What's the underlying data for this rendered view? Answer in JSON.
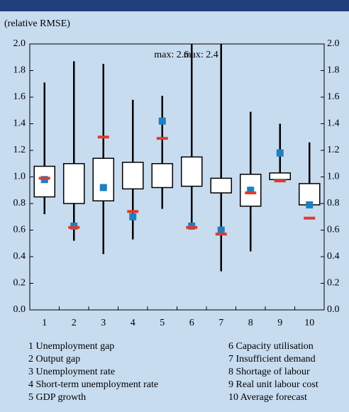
{
  "chart_data": {
    "type": "box",
    "subtitle": "(relative RMSE)",
    "categories": [
      "1",
      "2",
      "3",
      "4",
      "5",
      "6",
      "7",
      "8",
      "9",
      "10"
    ],
    "whisker_high": [
      1.71,
      1.87,
      1.85,
      1.58,
      1.61,
      2.6,
      2.4,
      1.49,
      1.4,
      1.26
    ],
    "box_high": [
      1.08,
      1.1,
      1.14,
      1.11,
      1.1,
      1.15,
      0.99,
      1.02,
      1.03,
      0.95
    ],
    "box_low": [
      0.85,
      0.8,
      0.82,
      0.91,
      0.92,
      0.93,
      0.88,
      0.78,
      0.98,
      0.79
    ],
    "whisker_low": [
      0.72,
      0.52,
      0.42,
      0.53,
      0.76,
      0.62,
      0.29,
      0.44,
      0.97,
      0.79
    ],
    "markers": [
      {
        "color": "#1f7fc0",
        "shape": "square",
        "values": [
          0.98,
          0.63,
          0.92,
          0.7,
          1.42,
          0.63,
          0.6,
          0.9,
          1.18,
          0.79
        ]
      },
      {
        "color": "#e03a30",
        "shape": "dash",
        "values": [
          0.99,
          0.62,
          1.3,
          0.74,
          1.29,
          0.62,
          0.57,
          0.88,
          0.97,
          0.69
        ]
      }
    ],
    "annotations": [
      {
        "text": "max: 2.6",
        "category": 5
      },
      {
        "text": "max: 2.4",
        "category": 6
      }
    ],
    "ylim": [
      0,
      2
    ],
    "yticks": [
      {
        "value": 0,
        "label": "0.0"
      },
      0.2,
      0.4,
      0.6,
      0.8,
      {
        "value": 1,
        "label": "1.0"
      },
      1.2,
      1.4,
      1.6,
      1.8,
      {
        "value": 2,
        "label": "2.0"
      }
    ],
    "legend_items": [
      "1 Unemployment gap",
      "2 Output gap",
      "3 Unemployment rate",
      "4 Short-term unemployment rate",
      "5 GDP growth",
      "6 Capacity utilisation",
      "7 Insufficient demand",
      "8 Shortage of labour",
      "9 Real unit labour cost",
      "10 Average forecast"
    ]
  }
}
